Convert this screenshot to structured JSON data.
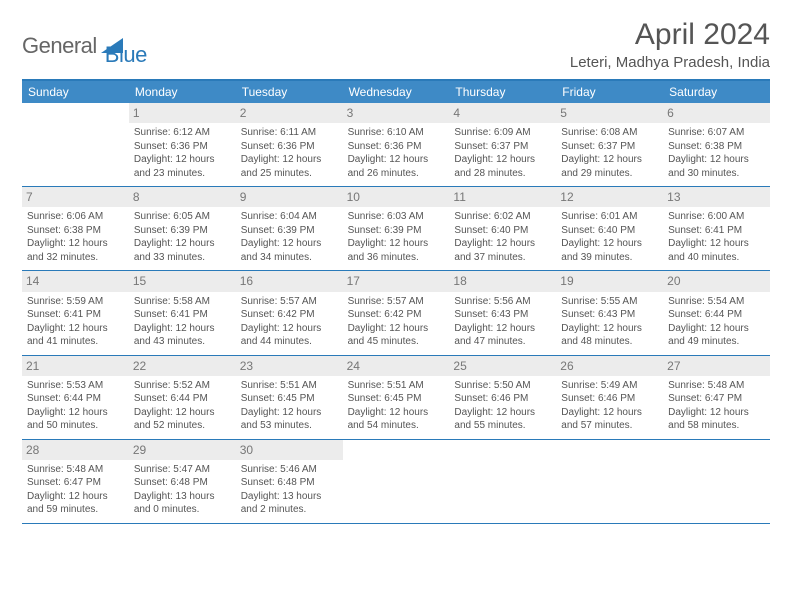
{
  "logo": {
    "general": "General",
    "blue": "Blue"
  },
  "title": "April 2024",
  "location": "Leteri, Madhya Pradesh, India",
  "colors": {
    "brand": "#3e8ac6",
    "rule": "#2a7ab9",
    "daynum_bg": "#ececec",
    "text": "#555555"
  },
  "weekdays": [
    "Sunday",
    "Monday",
    "Tuesday",
    "Wednesday",
    "Thursday",
    "Friday",
    "Saturday"
  ],
  "first_weekday_index": 1,
  "days": [
    {
      "n": 1,
      "sunrise": "6:12 AM",
      "sunset": "6:36 PM",
      "daylight": "12 hours and 23 minutes."
    },
    {
      "n": 2,
      "sunrise": "6:11 AM",
      "sunset": "6:36 PM",
      "daylight": "12 hours and 25 minutes."
    },
    {
      "n": 3,
      "sunrise": "6:10 AM",
      "sunset": "6:36 PM",
      "daylight": "12 hours and 26 minutes."
    },
    {
      "n": 4,
      "sunrise": "6:09 AM",
      "sunset": "6:37 PM",
      "daylight": "12 hours and 28 minutes."
    },
    {
      "n": 5,
      "sunrise": "6:08 AM",
      "sunset": "6:37 PM",
      "daylight": "12 hours and 29 minutes."
    },
    {
      "n": 6,
      "sunrise": "6:07 AM",
      "sunset": "6:38 PM",
      "daylight": "12 hours and 30 minutes."
    },
    {
      "n": 7,
      "sunrise": "6:06 AM",
      "sunset": "6:38 PM",
      "daylight": "12 hours and 32 minutes."
    },
    {
      "n": 8,
      "sunrise": "6:05 AM",
      "sunset": "6:39 PM",
      "daylight": "12 hours and 33 minutes."
    },
    {
      "n": 9,
      "sunrise": "6:04 AM",
      "sunset": "6:39 PM",
      "daylight": "12 hours and 34 minutes."
    },
    {
      "n": 10,
      "sunrise": "6:03 AM",
      "sunset": "6:39 PM",
      "daylight": "12 hours and 36 minutes."
    },
    {
      "n": 11,
      "sunrise": "6:02 AM",
      "sunset": "6:40 PM",
      "daylight": "12 hours and 37 minutes."
    },
    {
      "n": 12,
      "sunrise": "6:01 AM",
      "sunset": "6:40 PM",
      "daylight": "12 hours and 39 minutes."
    },
    {
      "n": 13,
      "sunrise": "6:00 AM",
      "sunset": "6:41 PM",
      "daylight": "12 hours and 40 minutes."
    },
    {
      "n": 14,
      "sunrise": "5:59 AM",
      "sunset": "6:41 PM",
      "daylight": "12 hours and 41 minutes."
    },
    {
      "n": 15,
      "sunrise": "5:58 AM",
      "sunset": "6:41 PM",
      "daylight": "12 hours and 43 minutes."
    },
    {
      "n": 16,
      "sunrise": "5:57 AM",
      "sunset": "6:42 PM",
      "daylight": "12 hours and 44 minutes."
    },
    {
      "n": 17,
      "sunrise": "5:57 AM",
      "sunset": "6:42 PM",
      "daylight": "12 hours and 45 minutes."
    },
    {
      "n": 18,
      "sunrise": "5:56 AM",
      "sunset": "6:43 PM",
      "daylight": "12 hours and 47 minutes."
    },
    {
      "n": 19,
      "sunrise": "5:55 AM",
      "sunset": "6:43 PM",
      "daylight": "12 hours and 48 minutes."
    },
    {
      "n": 20,
      "sunrise": "5:54 AM",
      "sunset": "6:44 PM",
      "daylight": "12 hours and 49 minutes."
    },
    {
      "n": 21,
      "sunrise": "5:53 AM",
      "sunset": "6:44 PM",
      "daylight": "12 hours and 50 minutes."
    },
    {
      "n": 22,
      "sunrise": "5:52 AM",
      "sunset": "6:44 PM",
      "daylight": "12 hours and 52 minutes."
    },
    {
      "n": 23,
      "sunrise": "5:51 AM",
      "sunset": "6:45 PM",
      "daylight": "12 hours and 53 minutes."
    },
    {
      "n": 24,
      "sunrise": "5:51 AM",
      "sunset": "6:45 PM",
      "daylight": "12 hours and 54 minutes."
    },
    {
      "n": 25,
      "sunrise": "5:50 AM",
      "sunset": "6:46 PM",
      "daylight": "12 hours and 55 minutes."
    },
    {
      "n": 26,
      "sunrise": "5:49 AM",
      "sunset": "6:46 PM",
      "daylight": "12 hours and 57 minutes."
    },
    {
      "n": 27,
      "sunrise": "5:48 AM",
      "sunset": "6:47 PM",
      "daylight": "12 hours and 58 minutes."
    },
    {
      "n": 28,
      "sunrise": "5:48 AM",
      "sunset": "6:47 PM",
      "daylight": "12 hours and 59 minutes."
    },
    {
      "n": 29,
      "sunrise": "5:47 AM",
      "sunset": "6:48 PM",
      "daylight": "13 hours and 0 minutes."
    },
    {
      "n": 30,
      "sunrise": "5:46 AM",
      "sunset": "6:48 PM",
      "daylight": "13 hours and 2 minutes."
    }
  ],
  "labels": {
    "sunrise": "Sunrise:",
    "sunset": "Sunset:",
    "daylight": "Daylight:"
  }
}
